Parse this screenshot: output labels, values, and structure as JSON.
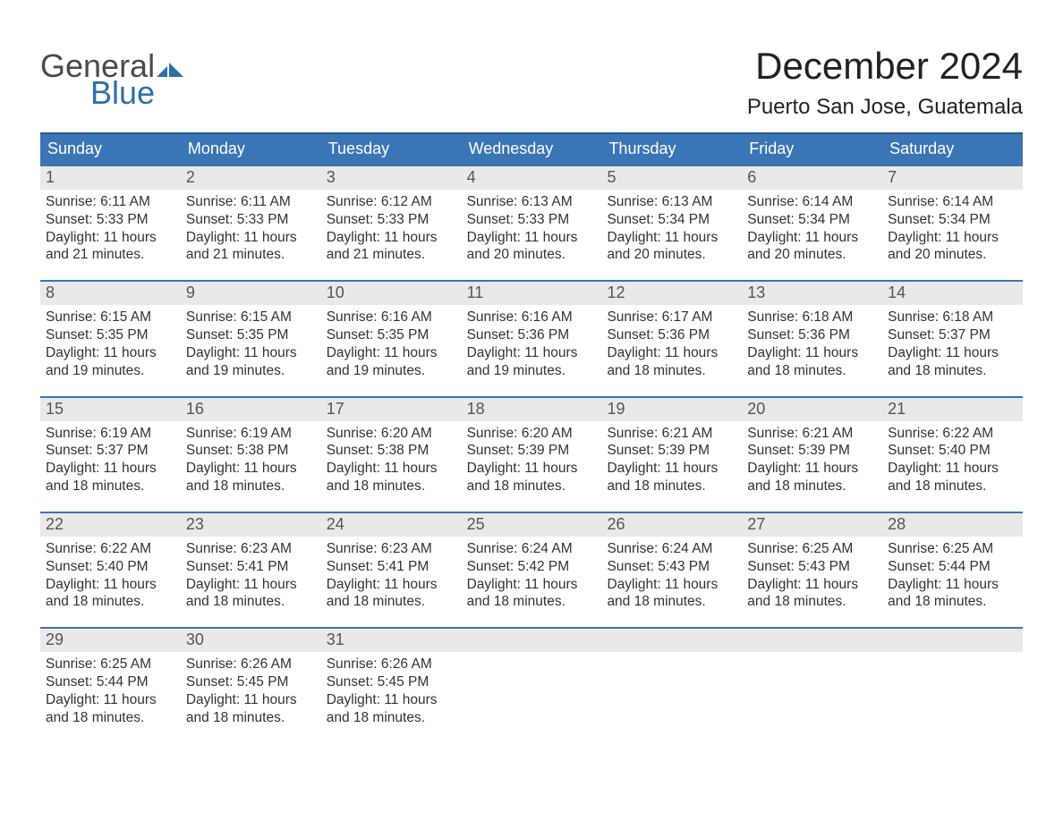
{
  "logo": {
    "word1": "General",
    "word2": "Blue",
    "text_color_1": "#4a4a4a",
    "text_color_2": "#2f6fa7",
    "flag_color": "#2f6fa7"
  },
  "title": "December 2024",
  "location": "Puerto San Jose, Guatemala",
  "colors": {
    "header_bg": "#3a75b5",
    "header_border": "#2a5a94",
    "week_border": "#3a75b5",
    "daynum_bg": "#e9e9e9",
    "page_bg": "#ffffff",
    "text": "#333333"
  },
  "days_of_week": [
    "Sunday",
    "Monday",
    "Tuesday",
    "Wednesday",
    "Thursday",
    "Friday",
    "Saturday"
  ],
  "weeks": [
    [
      {
        "n": "1",
        "sunrise": "Sunrise: 6:11 AM",
        "sunset": "Sunset: 5:33 PM",
        "d1": "Daylight: 11 hours",
        "d2": "and 21 minutes."
      },
      {
        "n": "2",
        "sunrise": "Sunrise: 6:11 AM",
        "sunset": "Sunset: 5:33 PM",
        "d1": "Daylight: 11 hours",
        "d2": "and 21 minutes."
      },
      {
        "n": "3",
        "sunrise": "Sunrise: 6:12 AM",
        "sunset": "Sunset: 5:33 PM",
        "d1": "Daylight: 11 hours",
        "d2": "and 21 minutes."
      },
      {
        "n": "4",
        "sunrise": "Sunrise: 6:13 AM",
        "sunset": "Sunset: 5:33 PM",
        "d1": "Daylight: 11 hours",
        "d2": "and 20 minutes."
      },
      {
        "n": "5",
        "sunrise": "Sunrise: 6:13 AM",
        "sunset": "Sunset: 5:34 PM",
        "d1": "Daylight: 11 hours",
        "d2": "and 20 minutes."
      },
      {
        "n": "6",
        "sunrise": "Sunrise: 6:14 AM",
        "sunset": "Sunset: 5:34 PM",
        "d1": "Daylight: 11 hours",
        "d2": "and 20 minutes."
      },
      {
        "n": "7",
        "sunrise": "Sunrise: 6:14 AM",
        "sunset": "Sunset: 5:34 PM",
        "d1": "Daylight: 11 hours",
        "d2": "and 20 minutes."
      }
    ],
    [
      {
        "n": "8",
        "sunrise": "Sunrise: 6:15 AM",
        "sunset": "Sunset: 5:35 PM",
        "d1": "Daylight: 11 hours",
        "d2": "and 19 minutes."
      },
      {
        "n": "9",
        "sunrise": "Sunrise: 6:15 AM",
        "sunset": "Sunset: 5:35 PM",
        "d1": "Daylight: 11 hours",
        "d2": "and 19 minutes."
      },
      {
        "n": "10",
        "sunrise": "Sunrise: 6:16 AM",
        "sunset": "Sunset: 5:35 PM",
        "d1": "Daylight: 11 hours",
        "d2": "and 19 minutes."
      },
      {
        "n": "11",
        "sunrise": "Sunrise: 6:16 AM",
        "sunset": "Sunset: 5:36 PM",
        "d1": "Daylight: 11 hours",
        "d2": "and 19 minutes."
      },
      {
        "n": "12",
        "sunrise": "Sunrise: 6:17 AM",
        "sunset": "Sunset: 5:36 PM",
        "d1": "Daylight: 11 hours",
        "d2": "and 18 minutes."
      },
      {
        "n": "13",
        "sunrise": "Sunrise: 6:18 AM",
        "sunset": "Sunset: 5:36 PM",
        "d1": "Daylight: 11 hours",
        "d2": "and 18 minutes."
      },
      {
        "n": "14",
        "sunrise": "Sunrise: 6:18 AM",
        "sunset": "Sunset: 5:37 PM",
        "d1": "Daylight: 11 hours",
        "d2": "and 18 minutes."
      }
    ],
    [
      {
        "n": "15",
        "sunrise": "Sunrise: 6:19 AM",
        "sunset": "Sunset: 5:37 PM",
        "d1": "Daylight: 11 hours",
        "d2": "and 18 minutes."
      },
      {
        "n": "16",
        "sunrise": "Sunrise: 6:19 AM",
        "sunset": "Sunset: 5:38 PM",
        "d1": "Daylight: 11 hours",
        "d2": "and 18 minutes."
      },
      {
        "n": "17",
        "sunrise": "Sunrise: 6:20 AM",
        "sunset": "Sunset: 5:38 PM",
        "d1": "Daylight: 11 hours",
        "d2": "and 18 minutes."
      },
      {
        "n": "18",
        "sunrise": "Sunrise: 6:20 AM",
        "sunset": "Sunset: 5:39 PM",
        "d1": "Daylight: 11 hours",
        "d2": "and 18 minutes."
      },
      {
        "n": "19",
        "sunrise": "Sunrise: 6:21 AM",
        "sunset": "Sunset: 5:39 PM",
        "d1": "Daylight: 11 hours",
        "d2": "and 18 minutes."
      },
      {
        "n": "20",
        "sunrise": "Sunrise: 6:21 AM",
        "sunset": "Sunset: 5:39 PM",
        "d1": "Daylight: 11 hours",
        "d2": "and 18 minutes."
      },
      {
        "n": "21",
        "sunrise": "Sunrise: 6:22 AM",
        "sunset": "Sunset: 5:40 PM",
        "d1": "Daylight: 11 hours",
        "d2": "and 18 minutes."
      }
    ],
    [
      {
        "n": "22",
        "sunrise": "Sunrise: 6:22 AM",
        "sunset": "Sunset: 5:40 PM",
        "d1": "Daylight: 11 hours",
        "d2": "and 18 minutes."
      },
      {
        "n": "23",
        "sunrise": "Sunrise: 6:23 AM",
        "sunset": "Sunset: 5:41 PM",
        "d1": "Daylight: 11 hours",
        "d2": "and 18 minutes."
      },
      {
        "n": "24",
        "sunrise": "Sunrise: 6:23 AM",
        "sunset": "Sunset: 5:41 PM",
        "d1": "Daylight: 11 hours",
        "d2": "and 18 minutes."
      },
      {
        "n": "25",
        "sunrise": "Sunrise: 6:24 AM",
        "sunset": "Sunset: 5:42 PM",
        "d1": "Daylight: 11 hours",
        "d2": "and 18 minutes."
      },
      {
        "n": "26",
        "sunrise": "Sunrise: 6:24 AM",
        "sunset": "Sunset: 5:43 PM",
        "d1": "Daylight: 11 hours",
        "d2": "and 18 minutes."
      },
      {
        "n": "27",
        "sunrise": "Sunrise: 6:25 AM",
        "sunset": "Sunset: 5:43 PM",
        "d1": "Daylight: 11 hours",
        "d2": "and 18 minutes."
      },
      {
        "n": "28",
        "sunrise": "Sunrise: 6:25 AM",
        "sunset": "Sunset: 5:44 PM",
        "d1": "Daylight: 11 hours",
        "d2": "and 18 minutes."
      }
    ],
    [
      {
        "n": "29",
        "sunrise": "Sunrise: 6:25 AM",
        "sunset": "Sunset: 5:44 PM",
        "d1": "Daylight: 11 hours",
        "d2": "and 18 minutes."
      },
      {
        "n": "30",
        "sunrise": "Sunrise: 6:26 AM",
        "sunset": "Sunset: 5:45 PM",
        "d1": "Daylight: 11 hours",
        "d2": "and 18 minutes."
      },
      {
        "n": "31",
        "sunrise": "Sunrise: 6:26 AM",
        "sunset": "Sunset: 5:45 PM",
        "d1": "Daylight: 11 hours",
        "d2": "and 18 minutes."
      },
      {
        "empty": true
      },
      {
        "empty": true
      },
      {
        "empty": true
      },
      {
        "empty": true
      }
    ]
  ]
}
